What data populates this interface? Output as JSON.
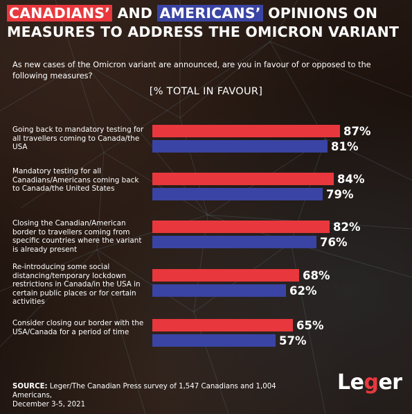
{
  "header": {
    "title_highlight_1": "CANADIANS’",
    "title_and": " AND ",
    "title_highlight_2": "AMERICANS’",
    "title_rest_line1": " OPINIONS ON",
    "title_line2": "MEASURES TO ADDRESS THE OMICRON VARIANT",
    "subtitle": "As new cases of the Omicron variant are announced, are you in favour of or opposed to the following measures?",
    "metric_label": "[% TOTAL IN FAVOUR]"
  },
  "footer": {
    "source_label": "SOURCE:",
    "source_text": " Leger/The Canadian Press survey of 1,547 Canadians and 1,004 Americans,",
    "source_date": "December 3-5, 2021",
    "logo_part1": "Le",
    "logo_part2": "g",
    "logo_part3": "er"
  },
  "colors": {
    "canada": "#e8383d",
    "usa": "#3a44a4",
    "text": "#ffffff"
  },
  "chart_data": {
    "type": "bar",
    "orientation": "horizontal",
    "title": "CANADIANS’ AND AMERICANS’ OPINIONS ON MEASURES TO ADDRESS THE OMICRON VARIANT",
    "xlim": [
      0,
      100
    ],
    "grid": false,
    "categories": [
      "Going back to mandatory testing for all travellers coming to Canada/the USA",
      "Mandatory testing for all Canadians/Americans coming back to Canada/the United States",
      "Closing the Canadian/American border to travellers coming from specific countries where the variant is already present",
      "Re-introducing some social distancing/temporary lockdown restrictions in Canada/in the USA in certain public places or for certain activities",
      "Consider closing our border with the USA/Canada for a period of time"
    ],
    "series": [
      {
        "color": "#e8383d",
        "values": [
          87,
          84,
          82,
          68,
          65
        ],
        "labels": [
          "87%",
          "84%",
          "82%",
          "68%",
          "65%"
        ]
      },
      {
        "color": "#3a44a4",
        "values": [
          81,
          79,
          76,
          62,
          57
        ],
        "labels": [
          "81%",
          "79%",
          "76%",
          "62%",
          "57%"
        ]
      }
    ]
  }
}
